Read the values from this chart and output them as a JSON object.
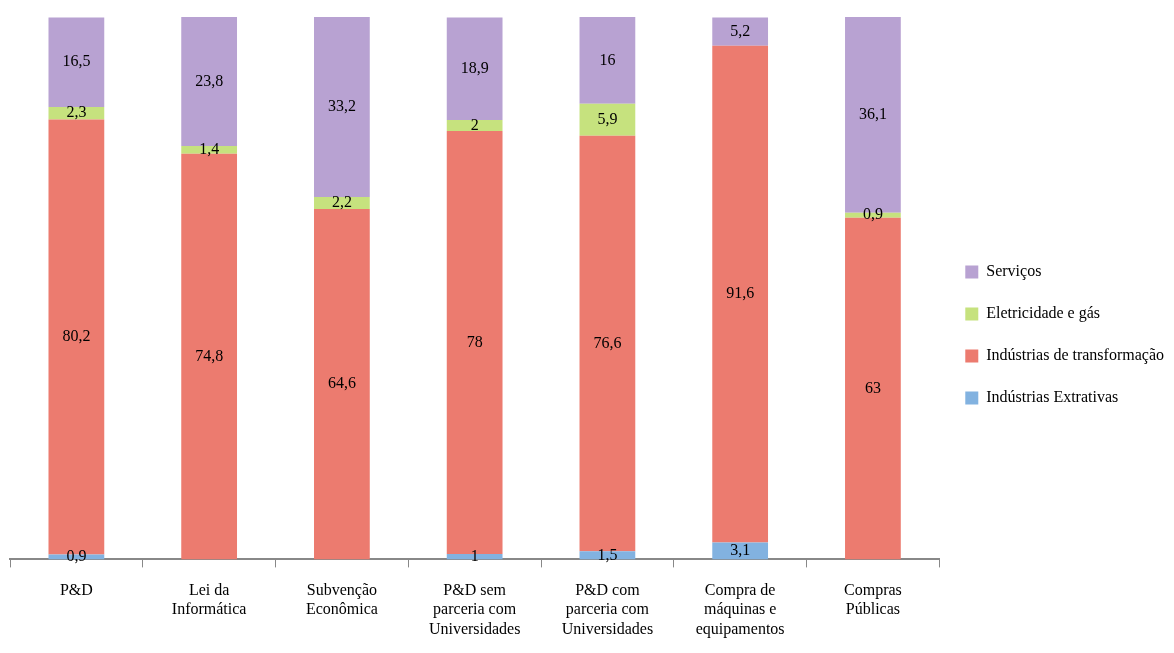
{
  "chart_data": {
    "type": "bar",
    "stacked": true,
    "legend": "right",
    "grid": false,
    "categories": [
      "P&D",
      "Lei da Informática",
      "Subvenção Econômica",
      "P&D sem parceria com Universidades",
      "P&D com parceria com Universidades",
      "Compra de máquinas e equipamentos",
      "Compras Públicas"
    ],
    "series": [
      {
        "name": "Indústrias Extrativas",
        "color": "#82b2e0",
        "values": [
          0.9,
          null,
          null,
          1,
          1.5,
          3.1,
          null
        ],
        "value_labels": [
          "0,9",
          null,
          null,
          "1",
          "1,5",
          "3,1",
          null
        ]
      },
      {
        "name": "Indústrias de transformação",
        "color": "#ec7b6f",
        "values": [
          80.2,
          74.8,
          64.6,
          78,
          76.6,
          91.6,
          63
        ],
        "value_labels": [
          "80,2",
          "74,8",
          "64,6",
          "78",
          "76,6",
          "91,6",
          "63"
        ]
      },
      {
        "name": "Eletricidade e gás",
        "color": "#c6e27e",
        "values": [
          2.3,
          1.4,
          2.2,
          2,
          5.9,
          null,
          0.9
        ],
        "value_labels": [
          "2,3",
          "1,4",
          "2,2",
          "2",
          "5,9",
          null,
          "0,9"
        ]
      },
      {
        "name": "Serviços",
        "color": "#b8a2d2",
        "values": [
          16.5,
          23.8,
          33.2,
          18.9,
          16,
          5.2,
          36.1
        ],
        "value_labels": [
          "16,5",
          "23,8",
          "33,2",
          "18,9",
          "16",
          "5,2",
          "36,1"
        ]
      }
    ]
  }
}
